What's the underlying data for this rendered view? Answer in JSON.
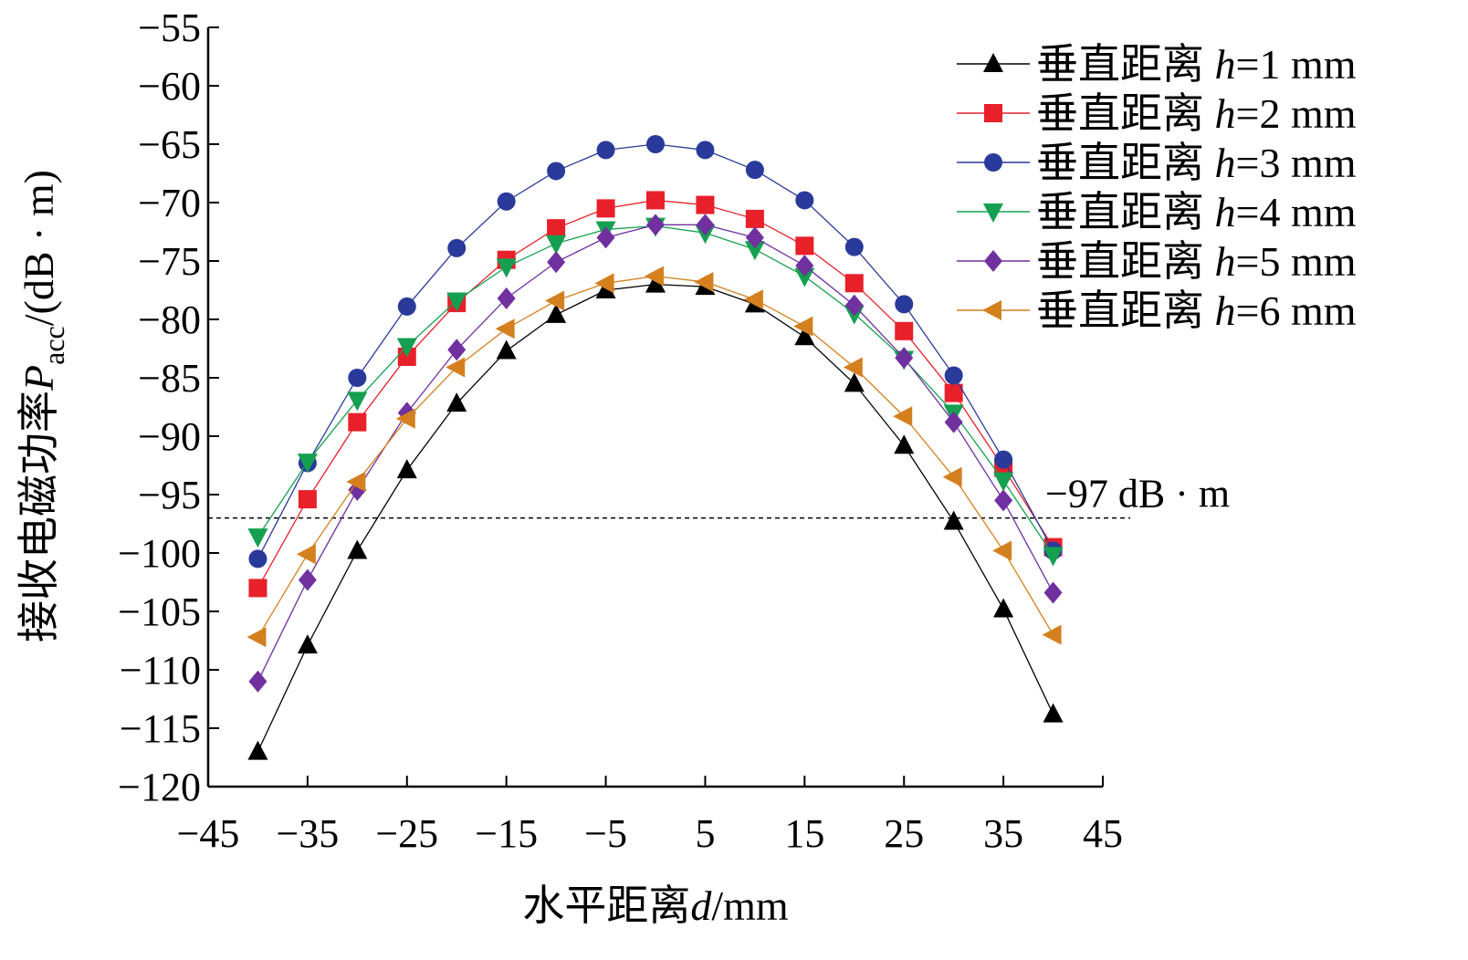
{
  "chart_data": {
    "type": "line",
    "xlabel": "水平距离d/mm",
    "xlabel_parts": {
      "prefix": "水平距离",
      "var": "d",
      "unit": "/mm"
    },
    "ylabel": "接收电磁功率P_acc/(dB · m)",
    "ylabel_parts": {
      "prefix": "接收电磁功率",
      "var": "P",
      "sub": "acc",
      "unit": "/(dB · m)"
    },
    "xlim": [
      -45,
      45
    ],
    "ylim": [
      -120,
      -55
    ],
    "xticks": [
      -45,
      -35,
      -25,
      -15,
      -5,
      5,
      15,
      25,
      35,
      45
    ],
    "yticks": [
      -55,
      -60,
      -65,
      -70,
      -75,
      -80,
      -85,
      -90,
      -95,
      -100,
      -105,
      -110,
      -115,
      -120
    ],
    "grid": false,
    "legend_placement": "top-right",
    "x": [
      -40,
      -35,
      -30,
      -25,
      -20,
      -15,
      -10,
      -5,
      0,
      5,
      10,
      15,
      20,
      25,
      30,
      35,
      40
    ],
    "series": [
      {
        "name": "垂直距离 h=1 mm",
        "label_prefix": "垂直距离 ",
        "label_var": "h",
        "label_rest": "=1 mm",
        "color": "#000000",
        "marker": "triangle-up",
        "values": [
          -117.0,
          -107.9,
          -99.8,
          -92.9,
          -87.2,
          -82.7,
          -79.6,
          -77.5,
          -77.0,
          -77.2,
          -78.7,
          -81.5,
          -85.5,
          -90.8,
          -97.3,
          -104.8,
          -113.8
        ]
      },
      {
        "name": "垂直距离 h=2 mm",
        "label_prefix": "垂直距离 ",
        "label_var": "h",
        "label_rest": "=2 mm",
        "color": "#e8202a",
        "marker": "square",
        "values": [
          -103.0,
          -95.4,
          -88.8,
          -83.2,
          -78.6,
          -74.9,
          -72.2,
          -70.5,
          -69.8,
          -70.2,
          -71.4,
          -73.7,
          -76.9,
          -81.0,
          -86.3,
          -92.7,
          -99.5
        ]
      },
      {
        "name": "垂直距离 h=3 mm",
        "label_prefix": "垂直距离 ",
        "label_var": "h",
        "label_rest": "=3 mm",
        "color": "#2a3a9a",
        "marker": "circle",
        "values": [
          -100.5,
          -92.3,
          -85.0,
          -78.9,
          -73.9,
          -69.9,
          -67.3,
          -65.5,
          -65.0,
          -65.5,
          -67.2,
          -69.8,
          -73.8,
          -78.7,
          -84.8,
          -92.0,
          -99.8
        ]
      },
      {
        "name": "垂直距离 h=4 mm",
        "label_prefix": "垂直距离 ",
        "label_var": "h",
        "label_rest": "=4 mm",
        "color": "#14a050",
        "marker": "triangle-down",
        "values": [
          -98.6,
          -92.2,
          -86.9,
          -82.3,
          -78.4,
          -75.5,
          -73.5,
          -72.3,
          -72.0,
          -72.6,
          -74.0,
          -76.3,
          -79.5,
          -83.4,
          -88.0,
          -93.8,
          -100.2
        ]
      },
      {
        "name": "垂直距离 h=5 mm",
        "label_prefix": "垂直距离 ",
        "label_var": "h",
        "label_rest": "=5 mm",
        "color": "#7030a0",
        "marker": "diamond",
        "values": [
          -111.0,
          -102.3,
          -94.6,
          -88.0,
          -82.6,
          -78.2,
          -75.1,
          -73.0,
          -71.9,
          -71.9,
          -73.0,
          -75.4,
          -78.8,
          -83.3,
          -88.8,
          -95.5,
          -103.4
        ]
      },
      {
        "name": "垂直距离 h=6 mm",
        "label_prefix": "垂直距离 ",
        "label_var": "h",
        "label_rest": "=6 mm",
        "color": "#d4801e",
        "marker": "triangle-left",
        "values": [
          -107.2,
          -100.1,
          -93.9,
          -88.5,
          -84.1,
          -80.8,
          -78.4,
          -76.9,
          -76.3,
          -76.8,
          -78.3,
          -80.6,
          -84.1,
          -88.3,
          -93.5,
          -99.8,
          -107.0
        ]
      }
    ],
    "annotations": [
      {
        "type": "hline",
        "y": -97,
        "style": "dashed",
        "label": "−97 dB · m"
      }
    ]
  }
}
